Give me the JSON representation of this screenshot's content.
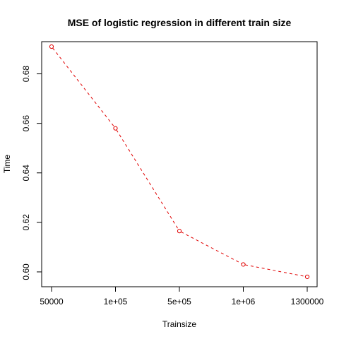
{
  "chart_data": {
    "type": "line",
    "title": "MSE of logistic regression in different train size",
    "xlabel": "Trainsize",
    "ylabel": "Time",
    "categories": [
      "50000",
      "1e+05",
      "5e+05",
      "1e+06",
      "1300000"
    ],
    "yticks": [
      "0.60",
      "0.62",
      "0.64",
      "0.66",
      "0.68"
    ],
    "ylim": [
      0.594,
      0.693
    ],
    "grid": false,
    "series": [
      {
        "values": [
          0.691,
          0.658,
          0.6165,
          0.603,
          0.598
        ],
        "color": "#e00000",
        "line_style": "dashed",
        "marker": "open-circle"
      }
    ]
  }
}
